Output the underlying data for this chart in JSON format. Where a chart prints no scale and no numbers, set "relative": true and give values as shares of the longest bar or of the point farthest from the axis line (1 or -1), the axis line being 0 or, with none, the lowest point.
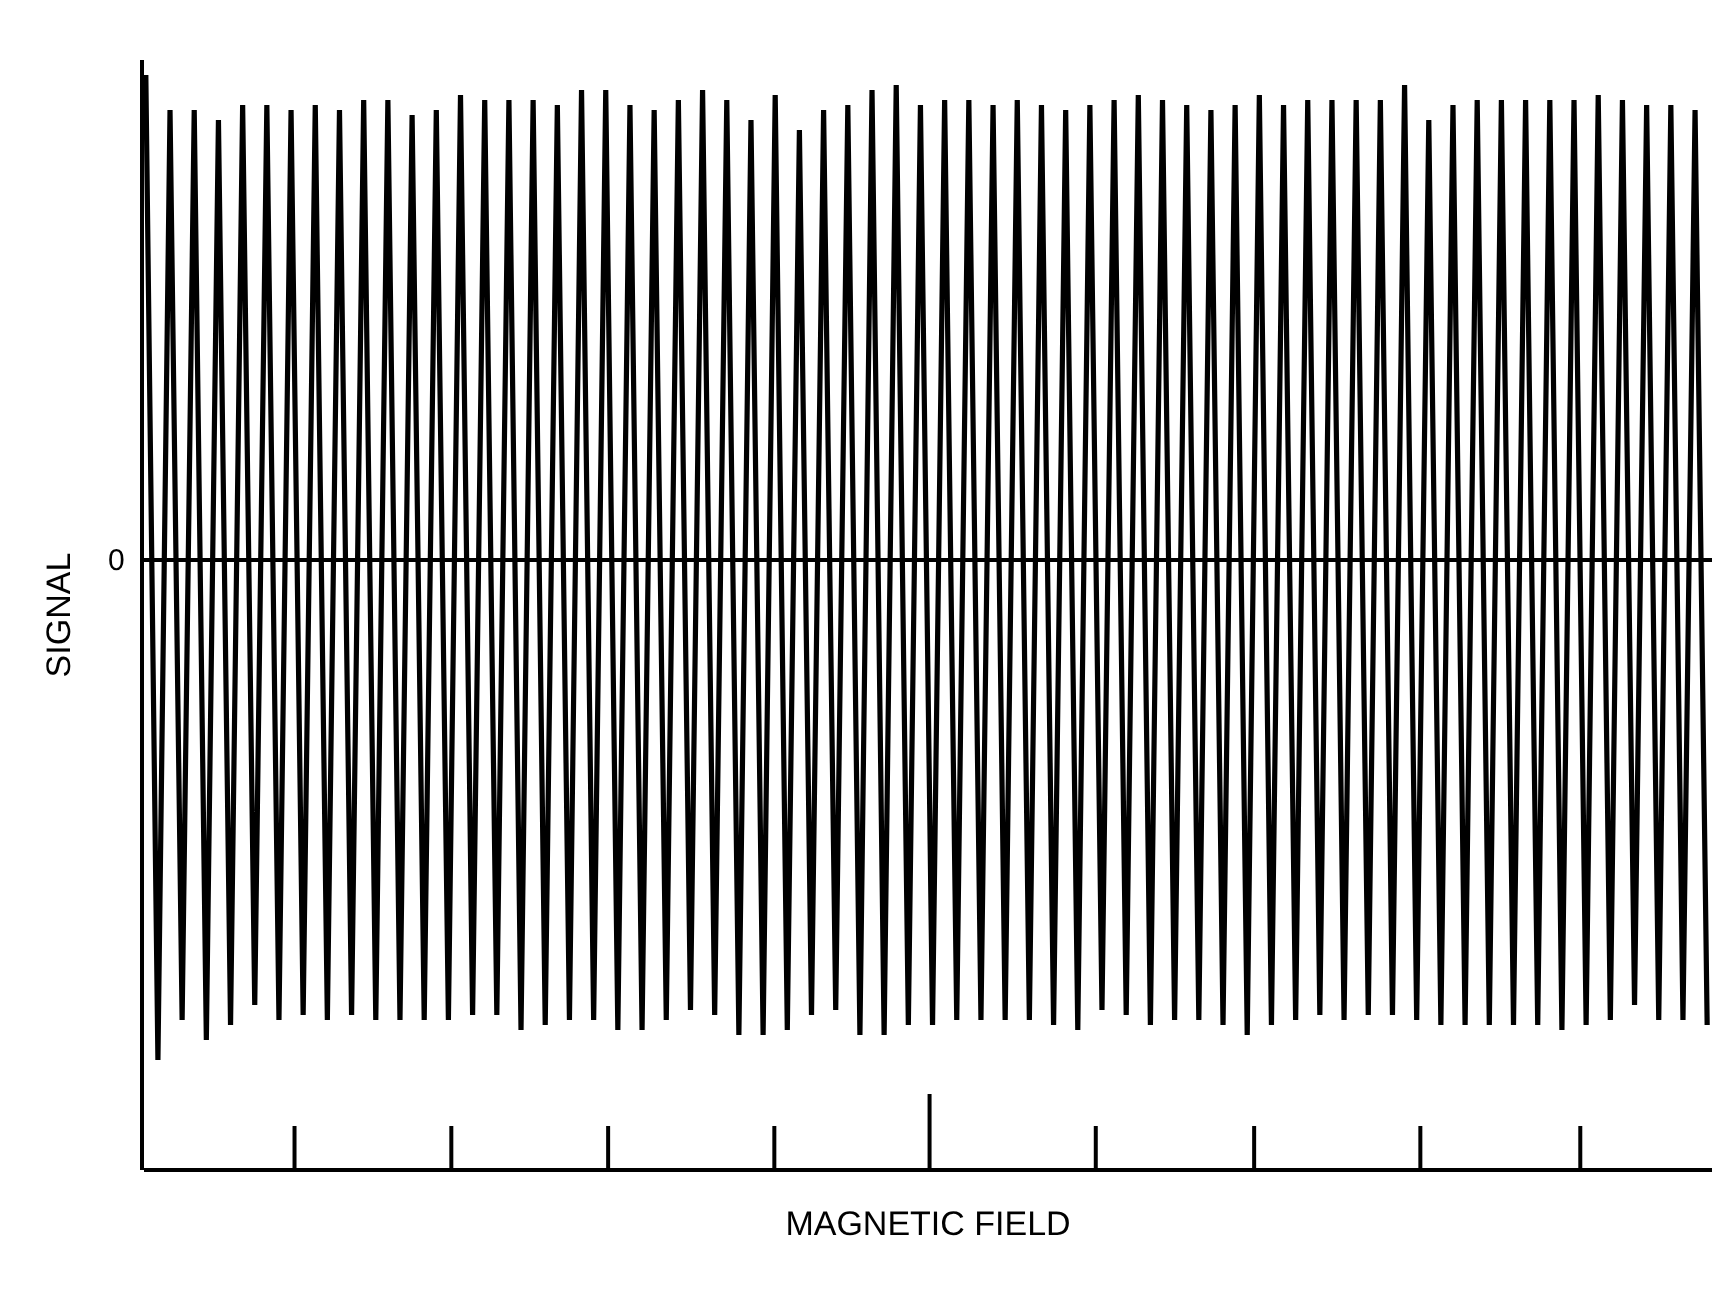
{
  "chart_data": {
    "type": "line",
    "relative": true,
    "xlabel": "MAGNETIC FIELD",
    "ylabel": "SIGNAL",
    "categories": [
      null,
      null,
      null,
      null,
      null,
      null,
      null,
      null,
      null,
      null,
      null,
      null,
      null,
      null,
      null,
      null,
      null,
      null,
      null,
      null,
      null,
      null,
      null,
      null,
      null,
      null,
      null,
      null,
      null,
      null,
      null,
      null,
      null,
      null,
      null,
      null,
      null,
      null,
      null,
      null,
      null,
      null,
      null,
      null,
      null,
      null,
      null,
      null,
      null,
      null,
      null,
      null,
      null,
      null,
      null,
      null,
      null,
      null,
      null,
      null,
      null,
      null,
      null,
      null,
      null,
      null,
      null,
      null,
      null,
      null,
      null,
      null,
      null,
      null,
      null,
      null,
      null,
      null,
      null,
      null,
      null,
      null,
      null,
      null,
      null,
      null,
      null,
      null,
      null,
      null,
      null,
      null,
      null,
      null,
      null,
      null,
      null,
      null,
      null,
      null,
      null,
      null,
      null,
      null,
      null,
      null,
      null,
      null,
      null,
      null,
      null,
      null,
      null,
      null,
      null,
      null,
      null,
      null,
      null,
      null,
      null,
      null,
      null,
      null,
      null,
      null,
      null,
      null,
      null,
      null
    ],
    "series": [
      {
        "color": "#000000",
        "values": [
          0.97,
          -1,
          0.9,
          -0.92,
          0.9,
          -0.96,
          0.88,
          -0.93,
          0.91,
          -0.89,
          0.91,
          -0.92,
          0.9,
          -0.91,
          0.91,
          -0.92,
          0.9,
          -0.91,
          0.92,
          -0.92,
          0.92,
          -0.92,
          0.89,
          -0.92,
          0.9,
          -0.92,
          0.93,
          -0.91,
          0.92,
          -0.91,
          0.92,
          -0.94,
          0.92,
          -0.93,
          0.91,
          -0.92,
          0.94,
          -0.92,
          0.94,
          -0.94,
          0.91,
          -0.94,
          0.9,
          -0.92,
          0.92,
          -0.9,
          0.94,
          -0.91,
          0.92,
          -0.95,
          0.88,
          -0.95,
          0.93,
          -0.94,
          0.86,
          -0.91,
          0.9,
          -0.9,
          0.91,
          -0.95,
          0.94,
          -0.95,
          0.95,
          -0.93,
          0.91,
          -0.93,
          0.92,
          -0.92,
          0.92,
          -0.92,
          0.91,
          -0.92,
          0.92,
          -0.92,
          0.91,
          -0.93,
          0.9,
          -0.94,
          0.91,
          -0.9,
          0.92,
          -0.91,
          0.93,
          -0.93,
          0.92,
          -0.92,
          0.91,
          -0.92,
          0.9,
          -0.93,
          0.91,
          -0.95,
          0.93,
          -0.93,
          0.91,
          -0.92,
          0.92,
          -0.91,
          0.92,
          -0.92,
          0.92,
          -0.91,
          0.92,
          -0.91,
          0.95,
          -0.92,
          0.88,
          -0.93,
          0.91,
          -0.93,
          0.92,
          -0.93,
          0.92,
          -0.93,
          0.92,
          -0.93,
          0.92,
          -0.94,
          0.92,
          -0.93,
          0.93,
          -0.92,
          0.92,
          -0.89,
          0.91,
          -0.92,
          0.91,
          -0.92,
          0.9,
          -0.93
        ]
      }
    ],
    "ref_lines": [
      {
        "axis": "y",
        "value": 0,
        "label": "0"
      }
    ],
    "marker": "none",
    "line_style": "solid"
  }
}
